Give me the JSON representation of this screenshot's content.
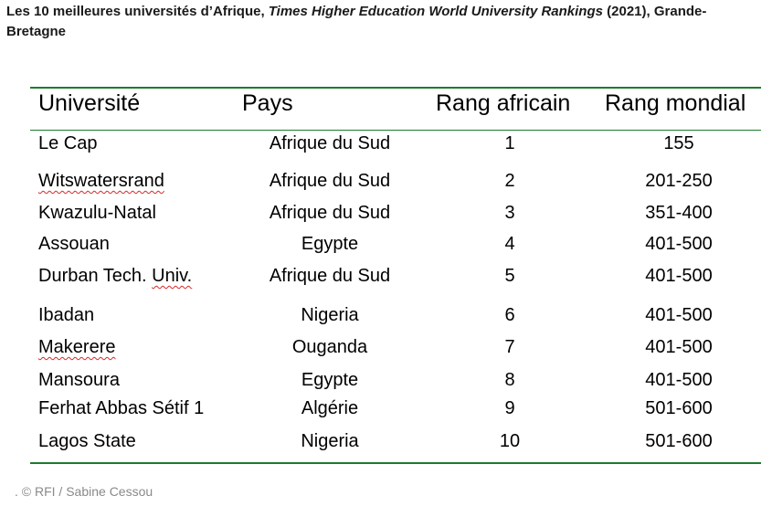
{
  "caption": {
    "part1": "Les 10 meilleures universités d’Afrique, ",
    "part2_italic": "Times Higher Education World University Rankings",
    "part3": " (2021), Grande-Bretagne"
  },
  "table": {
    "headers": [
      "Université",
      "Pays",
      "Rang africain",
      "Rang mondial"
    ],
    "rows": [
      {
        "universite": "Le Cap",
        "pays": "Afrique du Sud",
        "rang_africain": "1",
        "rang_mondial": "155"
      },
      {
        "universite": "Witswatersrand",
        "pays": "Afrique du Sud",
        "rang_africain": "2",
        "rang_mondial": "201-250"
      },
      {
        "universite": "Kwazulu-Natal",
        "pays": "Afrique du Sud",
        "rang_africain": "3",
        "rang_mondial": "351-400"
      },
      {
        "universite": "Assouan",
        "pays": "Egypte",
        "rang_africain": "4",
        "rang_mondial": "401-500"
      },
      {
        "universite_prefix": "Durban Tech. ",
        "universite_suffix": "Univ.",
        "pays": "Afrique du Sud",
        "rang_africain": "5",
        "rang_mondial": "401-500"
      },
      {
        "universite": "Ibadan",
        "pays": "Nigeria",
        "rang_africain": "6",
        "rang_mondial": "401-500"
      },
      {
        "universite": "Makerere",
        "pays": "Ouganda",
        "rang_africain": "7",
        "rang_mondial": "401-500"
      },
      {
        "universite": "Mansoura",
        "pays": "Egypte",
        "rang_africain": "8",
        "rang_mondial": "401-500"
      },
      {
        "universite": "Ferhat Abbas Sétif 1",
        "pays": "Algérie",
        "rang_africain": "9",
        "rang_mondial": "501-600"
      },
      {
        "universite": "Lagos State",
        "pays": "Nigeria",
        "rang_africain": "10",
        "rang_mondial": "501-600"
      }
    ]
  },
  "credit": ". © RFI / Sabine Cessou",
  "colors": {
    "rule": "#1e7b2e",
    "spellcheck_underline": "#d62828",
    "credit_text": "#8a8a8a"
  }
}
